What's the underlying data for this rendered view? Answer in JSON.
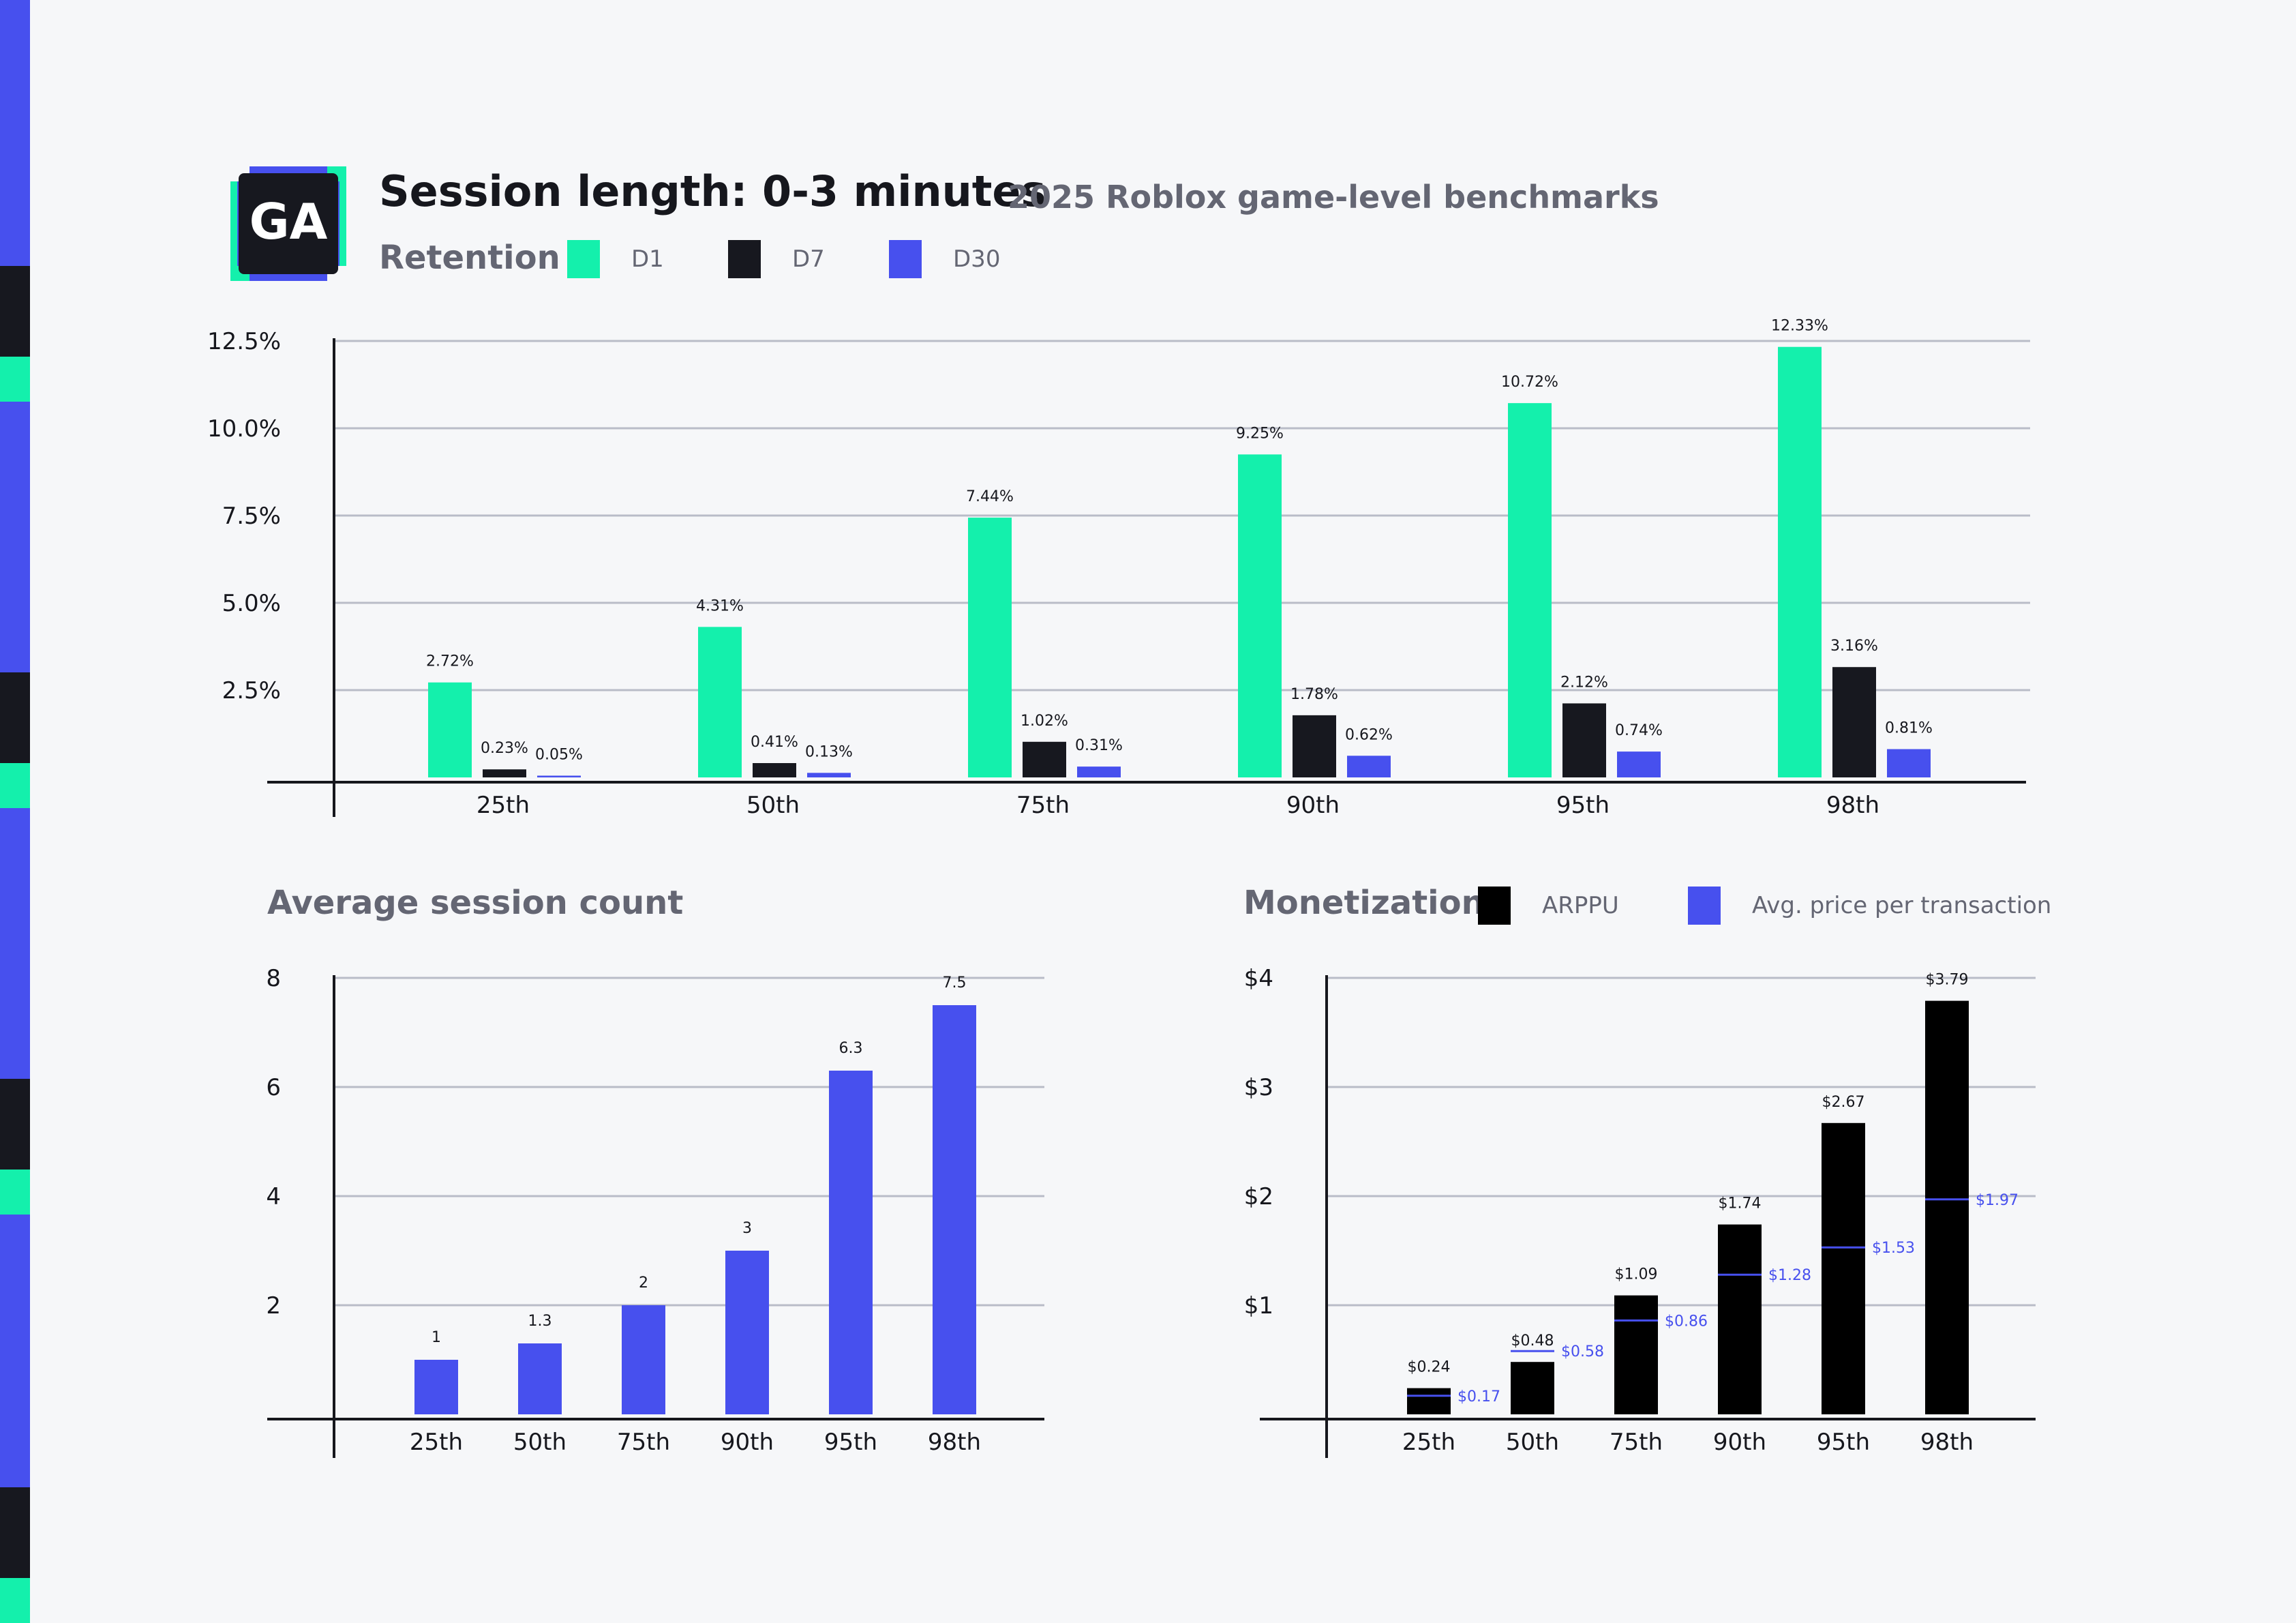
{
  "header": {
    "logo_text": "GA",
    "title": "Session length: 0-3 minutes",
    "subtitle": "2025 Roblox game-level benchmarks"
  },
  "colors": {
    "d1": "#14f0ac",
    "d7": "#17181f",
    "d30": "#4750ee",
    "arppu": "#000000",
    "avg_price": "#4750ee",
    "grid": "#b9bcc8",
    "axis": "#16171d",
    "stripe_blue": "#4750ee",
    "stripe_dark": "#17181f",
    "stripe_green": "#14f0ac"
  },
  "retention": {
    "label": "Retention",
    "legend": [
      {
        "label": "D1",
        "color": "#14f0ac"
      },
      {
        "label": "D7",
        "color": "#17181f"
      },
      {
        "label": "D30",
        "color": "#4750ee"
      }
    ]
  },
  "session": {
    "label": "Average session count"
  },
  "monetization": {
    "label": "Monetization",
    "legend": [
      {
        "label": "ARPPU",
        "color": "#000000"
      },
      {
        "label": "Avg. price per transaction",
        "color": "#4750ee"
      }
    ]
  },
  "chart_data": [
    {
      "type": "bar",
      "categories": [
        "25th",
        "50th",
        "75th",
        "90th",
        "95th",
        "98th"
      ],
      "series": [
        {
          "name": "D1",
          "values": [
            2.72,
            4.31,
            7.44,
            9.25,
            10.72,
            12.33
          ],
          "labels": [
            "2.72%",
            "4.31%",
            "7.44%",
            "9.25%",
            "10.72%",
            "12.33%"
          ]
        },
        {
          "name": "D7",
          "values": [
            0.23,
            0.41,
            1.02,
            1.78,
            2.12,
            3.16
          ],
          "labels": [
            "0.23%",
            "0.41%",
            "1.02%",
            "1.78%",
            "2.12%",
            "3.16%"
          ]
        },
        {
          "name": "D30",
          "values": [
            0.05,
            0.13,
            0.31,
            0.62,
            0.74,
            0.81
          ],
          "labels": [
            "0.05%",
            "0.13%",
            "0.31%",
            "0.62%",
            "0.74%",
            "0.81%"
          ]
        }
      ],
      "yticks": [
        2.5,
        5.0,
        7.5,
        10.0,
        12.5
      ],
      "ytick_labels": [
        "2.5%",
        "5.0%",
        "7.5%",
        "10.0%",
        "12.5%"
      ],
      "ylim": [
        0,
        12.5
      ],
      "grid": true
    },
    {
      "type": "bar",
      "categories": [
        "25th",
        "50th",
        "75th",
        "90th",
        "95th",
        "98th"
      ],
      "values": [
        1,
        1.3,
        2,
        3,
        6.3,
        7.5
      ],
      "labels": [
        "1",
        "1.3",
        "2",
        "3",
        "6.3",
        "7.5"
      ],
      "yticks": [
        2,
        4,
        6,
        8
      ],
      "ytick_labels": [
        "2",
        "4",
        "6",
        "8"
      ],
      "ylim": [
        0,
        8
      ],
      "grid": true
    },
    {
      "type": "bar",
      "categories": [
        "25th",
        "50th",
        "75th",
        "90th",
        "95th",
        "98th"
      ],
      "series": [
        {
          "name": "ARPPU",
          "values": [
            0.24,
            0.48,
            1.09,
            1.74,
            2.67,
            3.79
          ],
          "labels": [
            "$0.24",
            "$0.48",
            "$1.09",
            "$1.74",
            "$2.67",
            "$3.79"
          ]
        },
        {
          "name": "Avg. price per transaction",
          "values": [
            0.17,
            0.58,
            0.86,
            1.28,
            1.53,
            1.97
          ],
          "labels": [
            "$0.17",
            "$0.58",
            "$0.86",
            "$1.28",
            "$1.53",
            "$1.97"
          ]
        }
      ],
      "yticks": [
        1,
        2,
        3,
        4
      ],
      "ytick_labels": [
        "$1",
        "$2",
        "$3",
        "$4"
      ],
      "ylim": [
        0,
        4
      ],
      "grid": true
    }
  ]
}
